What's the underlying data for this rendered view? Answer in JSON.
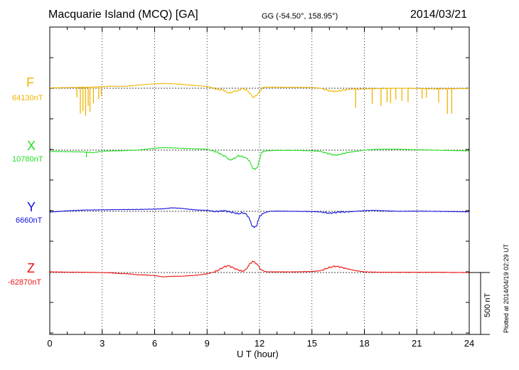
{
  "header": {
    "title": "Macquarie Island (MCQ)  [GA]",
    "coords": "GG (-54.50°, 158.95°)",
    "date": "2014/03/21"
  },
  "plotted_note": "Plotted at 2014/04/19 02:29 UT",
  "scale_label": "500 nT",
  "chart_data": {
    "type": "line",
    "title": "Macquarie Island (MCQ)  [GA]",
    "xlabel": "U T (hour)",
    "xlim": [
      0,
      24
    ],
    "xticks": [
      "0",
      "3",
      "6",
      "9",
      "12",
      "15",
      "18",
      "21",
      "24"
    ],
    "scale_bar_nT": 500,
    "series": [
      {
        "name": "F",
        "baseline_label": "64130nT",
        "color": "#f0b400",
        "spikes": [
          {
            "t": 1.55,
            "d": -80
          },
          {
            "t": 1.75,
            "d": -210
          },
          {
            "t": 1.9,
            "d": -190
          },
          {
            "t": 2.05,
            "d": -230
          },
          {
            "t": 2.2,
            "d": -150
          },
          {
            "t": 2.3,
            "d": -200
          },
          {
            "t": 2.5,
            "d": -130
          },
          {
            "t": 2.8,
            "d": -100
          },
          {
            "t": 2.95,
            "d": -70
          },
          {
            "t": 17.5,
            "d": -150
          },
          {
            "t": 18.45,
            "d": -120
          },
          {
            "t": 18.95,
            "d": -140
          },
          {
            "t": 19.3,
            "d": -110
          },
          {
            "t": 19.5,
            "d": -120
          },
          {
            "t": 19.8,
            "d": -90
          },
          {
            "t": 20.15,
            "d": -100
          },
          {
            "t": 20.5,
            "d": -110
          },
          {
            "t": 21.3,
            "d": -80
          },
          {
            "t": 21.55,
            "d": -70
          },
          {
            "t": 22.25,
            "d": -110
          },
          {
            "t": 22.75,
            "d": -200
          },
          {
            "t": 23.0,
            "d": -200
          }
        ],
        "points": [
          [
            0,
            3
          ],
          [
            1,
            5
          ],
          [
            2,
            8
          ],
          [
            3,
            12
          ],
          [
            3.5,
            17
          ],
          [
            4,
            14
          ],
          [
            4.5,
            17
          ],
          [
            5,
            24
          ],
          [
            5.5,
            30
          ],
          [
            6,
            35
          ],
          [
            6.5,
            38
          ],
          [
            7,
            36
          ],
          [
            7.5,
            32
          ],
          [
            8,
            25
          ],
          [
            8.5,
            20
          ],
          [
            9,
            14
          ],
          [
            9.3,
            4
          ],
          [
            9.6,
            -10
          ],
          [
            9.9,
            -12
          ],
          [
            10.1,
            -30
          ],
          [
            10.3,
            -40
          ],
          [
            10.5,
            -25
          ],
          [
            10.8,
            -20
          ],
          [
            11,
            0
          ],
          [
            11.2,
            -10
          ],
          [
            11.4,
            -30
          ],
          [
            11.5,
            -50
          ],
          [
            11.65,
            -75
          ],
          [
            11.8,
            -60
          ],
          [
            12,
            -30
          ],
          [
            12.2,
            6
          ],
          [
            12.5,
            9
          ],
          [
            13,
            8
          ],
          [
            14,
            8
          ],
          [
            15,
            6
          ],
          [
            15.5,
            0
          ],
          [
            16,
            -20
          ],
          [
            16.3,
            -26
          ],
          [
            16.6,
            -20
          ],
          [
            17,
            -10
          ],
          [
            17.4,
            -5
          ],
          [
            17.7,
            -8
          ],
          [
            18,
            -5
          ],
          [
            19,
            -2
          ],
          [
            20,
            0
          ],
          [
            21,
            -2
          ],
          [
            22,
            -5
          ],
          [
            23,
            -4
          ],
          [
            24,
            -2
          ]
        ]
      },
      {
        "name": "X",
        "baseline_label": "10780nT",
        "color": "#22dd22",
        "spikes": [
          {
            "t": 2.1,
            "d": -40
          }
        ],
        "points": [
          [
            0,
            -10
          ],
          [
            1,
            -12
          ],
          [
            2,
            -15
          ],
          [
            2.5,
            -20
          ],
          [
            3,
            -8
          ],
          [
            4,
            -5
          ],
          [
            5,
            0
          ],
          [
            6,
            15
          ],
          [
            6.5,
            20
          ],
          [
            7,
            18
          ],
          [
            8,
            12
          ],
          [
            9,
            8
          ],
          [
            9.3,
            -5
          ],
          [
            9.6,
            -18
          ],
          [
            9.9,
            -40
          ],
          [
            10.1,
            -55
          ],
          [
            10.3,
            -80
          ],
          [
            10.5,
            -70
          ],
          [
            10.8,
            -45
          ],
          [
            11,
            -50
          ],
          [
            11.2,
            -60
          ],
          [
            11.4,
            -80
          ],
          [
            11.6,
            -140
          ],
          [
            11.75,
            -155
          ],
          [
            11.9,
            -130
          ],
          [
            12.1,
            -20
          ],
          [
            12.4,
            -5
          ],
          [
            13,
            -2
          ],
          [
            14,
            -2
          ],
          [
            15,
            -5
          ],
          [
            15.5,
            -10
          ],
          [
            16,
            -30
          ],
          [
            16.3,
            -40
          ],
          [
            16.6,
            -35
          ],
          [
            17,
            -20
          ],
          [
            17.5,
            -10
          ],
          [
            18,
            0
          ],
          [
            18.5,
            5
          ],
          [
            19,
            8
          ],
          [
            20,
            7
          ],
          [
            21,
            3
          ],
          [
            22,
            0
          ],
          [
            23,
            -3
          ],
          [
            24,
            -6
          ]
        ]
      },
      {
        "name": "Y",
        "baseline_label": "6660nT",
        "color": "#1010dd",
        "spikes": [],
        "points": [
          [
            0,
            -6
          ],
          [
            1,
            4
          ],
          [
            2,
            10
          ],
          [
            3,
            12
          ],
          [
            4,
            14
          ],
          [
            5,
            15
          ],
          [
            6,
            18
          ],
          [
            6.5,
            20
          ],
          [
            7,
            28
          ],
          [
            7.5,
            24
          ],
          [
            8,
            16
          ],
          [
            8.5,
            10
          ],
          [
            9,
            8
          ],
          [
            9.5,
            -2
          ],
          [
            10,
            5
          ],
          [
            10.3,
            -5
          ],
          [
            10.5,
            -10
          ],
          [
            10.8,
            -20
          ],
          [
            11,
            -12
          ],
          [
            11.2,
            -18
          ],
          [
            11.4,
            -50
          ],
          [
            11.55,
            -110
          ],
          [
            11.7,
            -130
          ],
          [
            11.85,
            -110
          ],
          [
            12,
            -40
          ],
          [
            12.3,
            -10
          ],
          [
            12.6,
            0
          ],
          [
            13,
            2
          ],
          [
            14,
            0
          ],
          [
            15,
            -2
          ],
          [
            15.5,
            -5
          ],
          [
            16,
            -15
          ],
          [
            16.3,
            -10
          ],
          [
            16.6,
            -5
          ],
          [
            17,
            -5
          ],
          [
            17.5,
            0
          ],
          [
            18,
            5
          ],
          [
            18.5,
            8
          ],
          [
            19,
            5
          ],
          [
            20,
            0
          ],
          [
            21,
            2
          ],
          [
            22,
            0
          ],
          [
            23,
            -2
          ],
          [
            24,
            -4
          ]
        ]
      },
      {
        "name": "Z",
        "baseline_label": "-62870nT",
        "color": "#ee1010",
        "spikes": [],
        "points": [
          [
            0,
            5
          ],
          [
            1,
            3
          ],
          [
            2,
            2
          ],
          [
            3,
            0
          ],
          [
            3.5,
            -2
          ],
          [
            4,
            -8
          ],
          [
            4.5,
            -10
          ],
          [
            5,
            -18
          ],
          [
            5.5,
            -20
          ],
          [
            6,
            -25
          ],
          [
            6.5,
            -35
          ],
          [
            7,
            -30
          ],
          [
            7.5,
            -30
          ],
          [
            8,
            -25
          ],
          [
            8.5,
            -20
          ],
          [
            9,
            -10
          ],
          [
            9.3,
            0
          ],
          [
            9.6,
            15
          ],
          [
            9.9,
            40
          ],
          [
            10.2,
            55
          ],
          [
            10.4,
            45
          ],
          [
            10.6,
            30
          ],
          [
            10.8,
            20
          ],
          [
            11,
            10
          ],
          [
            11.2,
            20
          ],
          [
            11.4,
            60
          ],
          [
            11.6,
            90
          ],
          [
            11.75,
            80
          ],
          [
            11.9,
            60
          ],
          [
            12.1,
            20
          ],
          [
            12.4,
            5
          ],
          [
            13,
            5
          ],
          [
            14,
            5
          ],
          [
            15,
            8
          ],
          [
            15.5,
            15
          ],
          [
            16,
            40
          ],
          [
            16.3,
            50
          ],
          [
            16.6,
            45
          ],
          [
            17,
            30
          ],
          [
            17.5,
            15
          ],
          [
            18,
            5
          ],
          [
            19,
            2
          ],
          [
            20,
            2
          ],
          [
            21,
            2
          ],
          [
            22,
            2
          ],
          [
            23,
            1
          ],
          [
            24,
            0
          ]
        ]
      }
    ]
  }
}
